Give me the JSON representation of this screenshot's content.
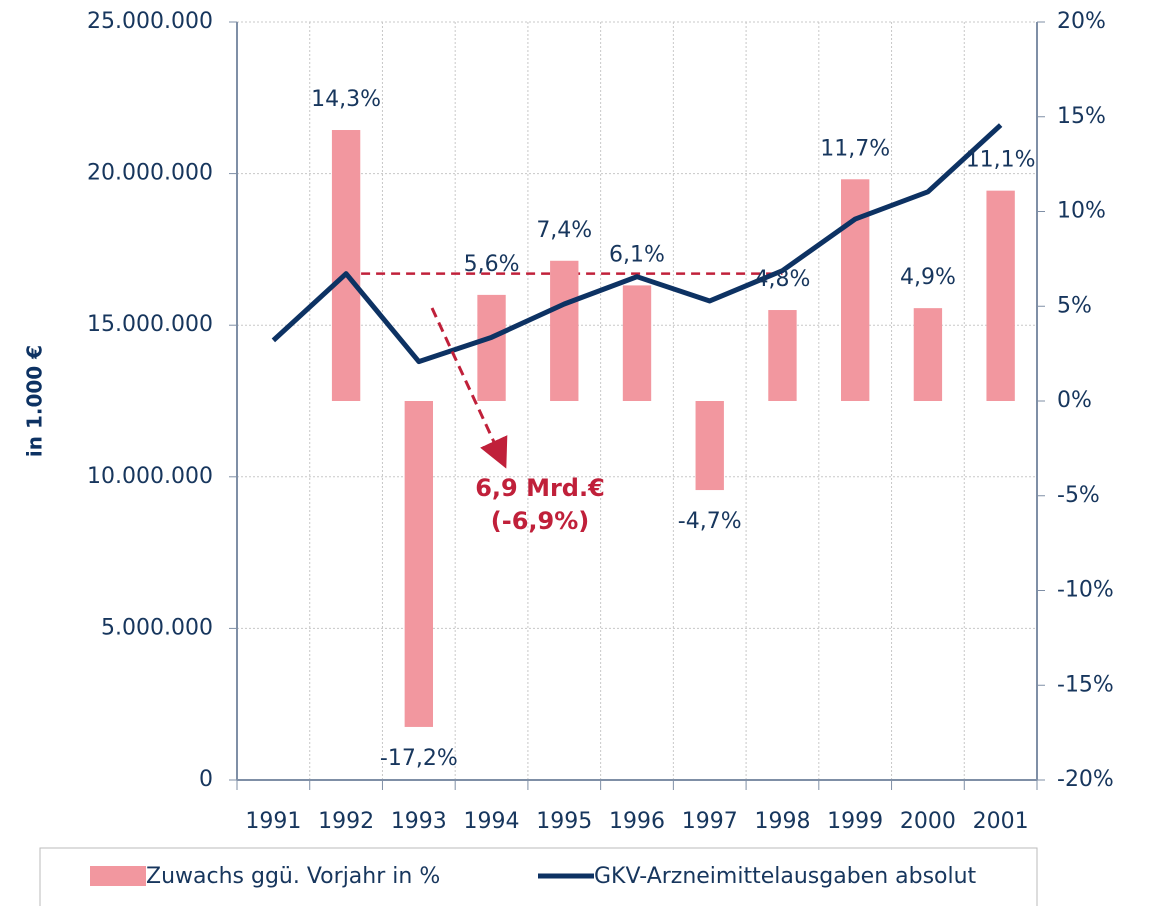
{
  "chart_data": {
    "type": "combo",
    "y_label": "in 1.000 €",
    "annotations": [
      "6,9 Mrd.€",
      "(-6,9%)"
    ],
    "categories": [
      "1991",
      "1992",
      "1993",
      "1994",
      "1995",
      "1996",
      "1997",
      "1998",
      "1999",
      "2000",
      "2001"
    ],
    "series": [
      {
        "name": "Zuwachs ggü. Vorjahr in %",
        "type": "bar",
        "axis": "y2",
        "color": "#f2979f",
        "values": [
          null,
          14.3,
          -17.2,
          5.6,
          7.4,
          6.1,
          -4.7,
          4.8,
          11.7,
          4.9,
          11.1
        ],
        "value_labels": [
          null,
          "14,3%",
          "-17,2%",
          "5,6%",
          "7,4%",
          "6,1%",
          "-4,7%",
          "4,8%",
          "11,7%",
          "4,9%",
          "11,1%"
        ]
      },
      {
        "name": "GKV-Arzneimittelausgaben absolut",
        "type": "line",
        "color": "#0d3263",
        "values": [
          14500000,
          16700000,
          13800000,
          14600000,
          15700000,
          16600000,
          15800000,
          16800000,
          18500000,
          19400000,
          21600000
        ]
      }
    ],
    "ylim": [
      0,
      25000000
    ],
    "yticks": [
      0,
      {
        "value": 5000000,
        "label": "5.000.000"
      },
      {
        "value": 10000000,
        "label": "10.000.000"
      },
      {
        "value": 15000000,
        "label": "15.000.000"
      },
      {
        "value": 20000000,
        "label": "20.000.000"
      },
      {
        "value": 25000000,
        "label": "25.000.000"
      }
    ],
    "y2lim": [
      -20,
      20
    ],
    "y2ticks": [
      {
        "value": -20,
        "label": "-20%"
      },
      {
        "value": -15,
        "label": "-15%"
      },
      {
        "value": -10,
        "label": "-10%"
      },
      {
        "value": -5,
        "label": "-5%"
      },
      {
        "value": 0,
        "label": "0%"
      },
      {
        "value": 5,
        "label": "5%"
      },
      {
        "value": 10,
        "label": "10%"
      },
      {
        "value": 15,
        "label": "15%"
      },
      {
        "value": 20,
        "label": "20%"
      }
    ],
    "grid": true,
    "legend": "bottom"
  }
}
